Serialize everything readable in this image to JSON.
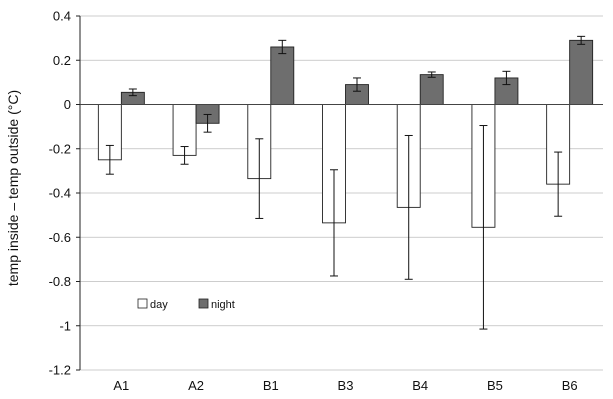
{
  "chart_data": {
    "type": "bar",
    "title": "",
    "xlabel": "",
    "ylabel": "temp inside – temp outside (°C)",
    "ylim": [
      -1.2,
      0.4
    ],
    "yticks": [
      0.4,
      0.2,
      0,
      -0.2,
      -0.4,
      -0.6,
      -0.8,
      -1,
      -1.2
    ],
    "ytick_labels": [
      "0.4",
      "0.2",
      "0",
      "-0.2",
      "-0.4",
      "-0.6",
      "-0.8",
      "-1",
      "-1.2"
    ],
    "grid": true,
    "legend_position": "lower-left",
    "categories": [
      "A1",
      "A2",
      "B1",
      "B3",
      "B4",
      "B5",
      "B6"
    ],
    "series": [
      {
        "name": "day",
        "color": "#ffffff",
        "values": [
          -0.25,
          -0.23,
          -0.335,
          -0.535,
          -0.465,
          -0.555,
          -0.36
        ],
        "errors": [
          0.065,
          0.04,
          0.18,
          0.24,
          0.325,
          0.46,
          0.145
        ]
      },
      {
        "name": "night",
        "color": "#6e6e6e",
        "values": [
          0.055,
          -0.085,
          0.26,
          0.09,
          0.135,
          0.12,
          0.29
        ],
        "errors": [
          0.015,
          0.04,
          0.03,
          0.03,
          0.012,
          0.03,
          0.018
        ]
      }
    ]
  }
}
